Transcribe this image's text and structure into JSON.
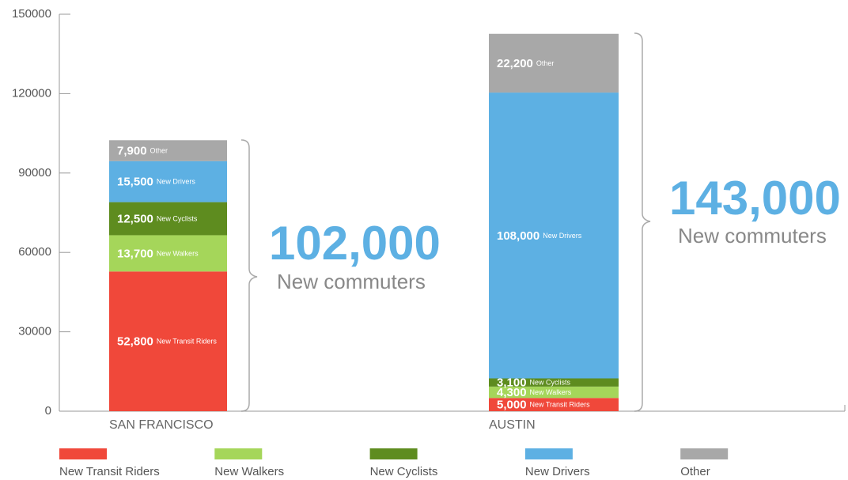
{
  "chart_data": {
    "type": "stacked_bar",
    "categories": [
      "SAN FRANCISCO",
      "AUSTIN"
    ],
    "series": [
      {
        "name": "New Transit Riders",
        "color": "#f0483a",
        "values": [
          52800,
          5000
        ],
        "value_labels": [
          "52,800",
          "5,000"
        ]
      },
      {
        "name": "New Walkers",
        "color": "#a5d65a",
        "values": [
          13700,
          4300
        ],
        "value_labels": [
          "13,700",
          "4,300"
        ]
      },
      {
        "name": "New Cyclists",
        "color": "#5e8c1f",
        "values": [
          12500,
          3100
        ],
        "value_labels": [
          "12,500",
          "3,100"
        ]
      },
      {
        "name": "New Drivers",
        "color": "#5db0e3",
        "values": [
          15500,
          108000
        ],
        "value_labels": [
          "15,500",
          "108,000"
        ]
      },
      {
        "name": "Other",
        "color": "#a8a8a8",
        "values": [
          7900,
          22200
        ],
        "value_labels": [
          "7,900",
          "22,200"
        ]
      }
    ],
    "annotations": [
      {
        "text": "102,000",
        "subtext": "New commuters"
      },
      {
        "text": "143,000",
        "subtext": "New commuters"
      }
    ],
    "ylim": [
      0,
      150000
    ],
    "yticks": [
      0,
      30000,
      60000,
      90000,
      120000,
      150000
    ],
    "legend": "bottom"
  }
}
